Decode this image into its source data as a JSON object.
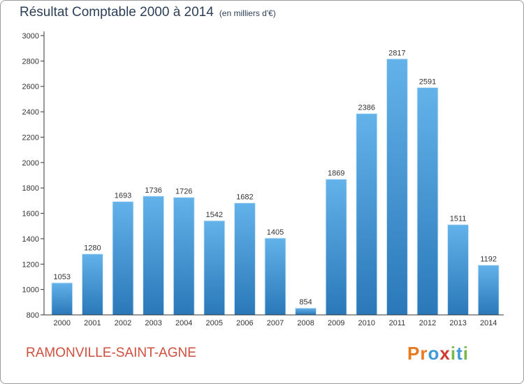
{
  "chart_data": {
    "type": "bar",
    "title": "Résultat Comptable 2000 à 2014",
    "subtitle": "(en milliers d'€)",
    "xlabel": "",
    "ylabel": "",
    "categories": [
      "2000",
      "2001",
      "2002",
      "2003",
      "2004",
      "2005",
      "2006",
      "2007",
      "2008",
      "2009",
      "2010",
      "2011",
      "2012",
      "2013",
      "2014"
    ],
    "values": [
      1053,
      1280,
      1693,
      1736,
      1726,
      1542,
      1682,
      1405,
      854,
      1869,
      2386,
      2817,
      2591,
      1511,
      1192
    ],
    "data_labels": [
      "1053",
      "1280",
      "1693",
      "1736",
      "1726",
      "1542",
      "1682",
      "1405",
      "854",
      "1869",
      "2386",
      "2817",
      "2591",
      "1511",
      "1192"
    ],
    "ylim": [
      800,
      3000
    ],
    "yticks": [
      "800",
      "1000",
      "1200",
      "1400",
      "1600",
      "1800",
      "2000",
      "2200",
      "2400",
      "2600",
      "2800",
      "3000"
    ],
    "grid": false,
    "legend": "none"
  },
  "footer": {
    "commune": "RAMONVILLE-SAINT-AGNE",
    "brand_letters": [
      "P",
      "r",
      "o",
      "x",
      "i",
      "t",
      "i"
    ]
  },
  "colors": {
    "bar_light": "#63b2ea",
    "bar_dark": "#2a78b8",
    "title": "#2c3f57",
    "commune": "#cf4f3f",
    "axis": "#333333",
    "brand": [
      "#e8791f",
      "#e8791f",
      "#3f9ad6",
      "#cf3b2e",
      "#7ab648",
      "#3f9ad6",
      "#7ab648"
    ]
  }
}
